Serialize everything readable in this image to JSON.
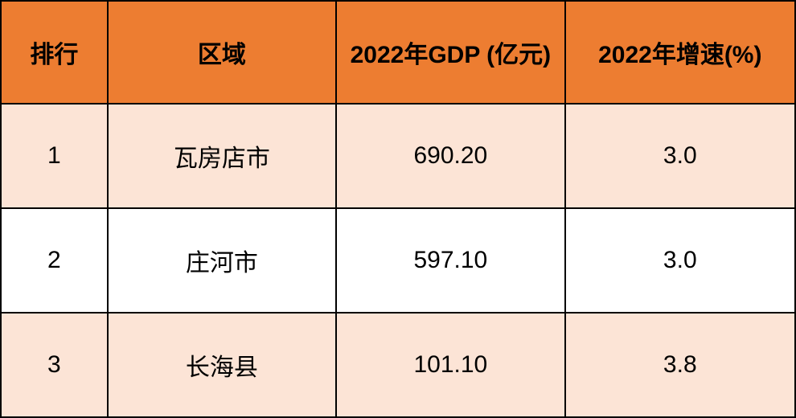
{
  "chart_data": {
    "type": "table",
    "title": "",
    "columns": [
      "排行",
      "区域",
      "2022年GDP (亿元)",
      "2022年增速(%)"
    ],
    "rows": [
      [
        "1",
        "瓦房店市",
        "690.20",
        "3.0"
      ],
      [
        "2",
        "庄河市",
        "597.10",
        "3.0"
      ],
      [
        "3",
        "长海县",
        "101.10",
        "3.8"
      ]
    ],
    "layout_hints": {
      "header_style": "orange filled, bold black text",
      "row_banding": [
        "band",
        "plain",
        "band"
      ],
      "grid": "all black borders"
    }
  },
  "colors": {
    "header-bg": "#ED7D31",
    "band-bg": "#FCE4D6",
    "plain-bg": "#FFFFFF",
    "border": "#000000",
    "text": "#000000"
  }
}
